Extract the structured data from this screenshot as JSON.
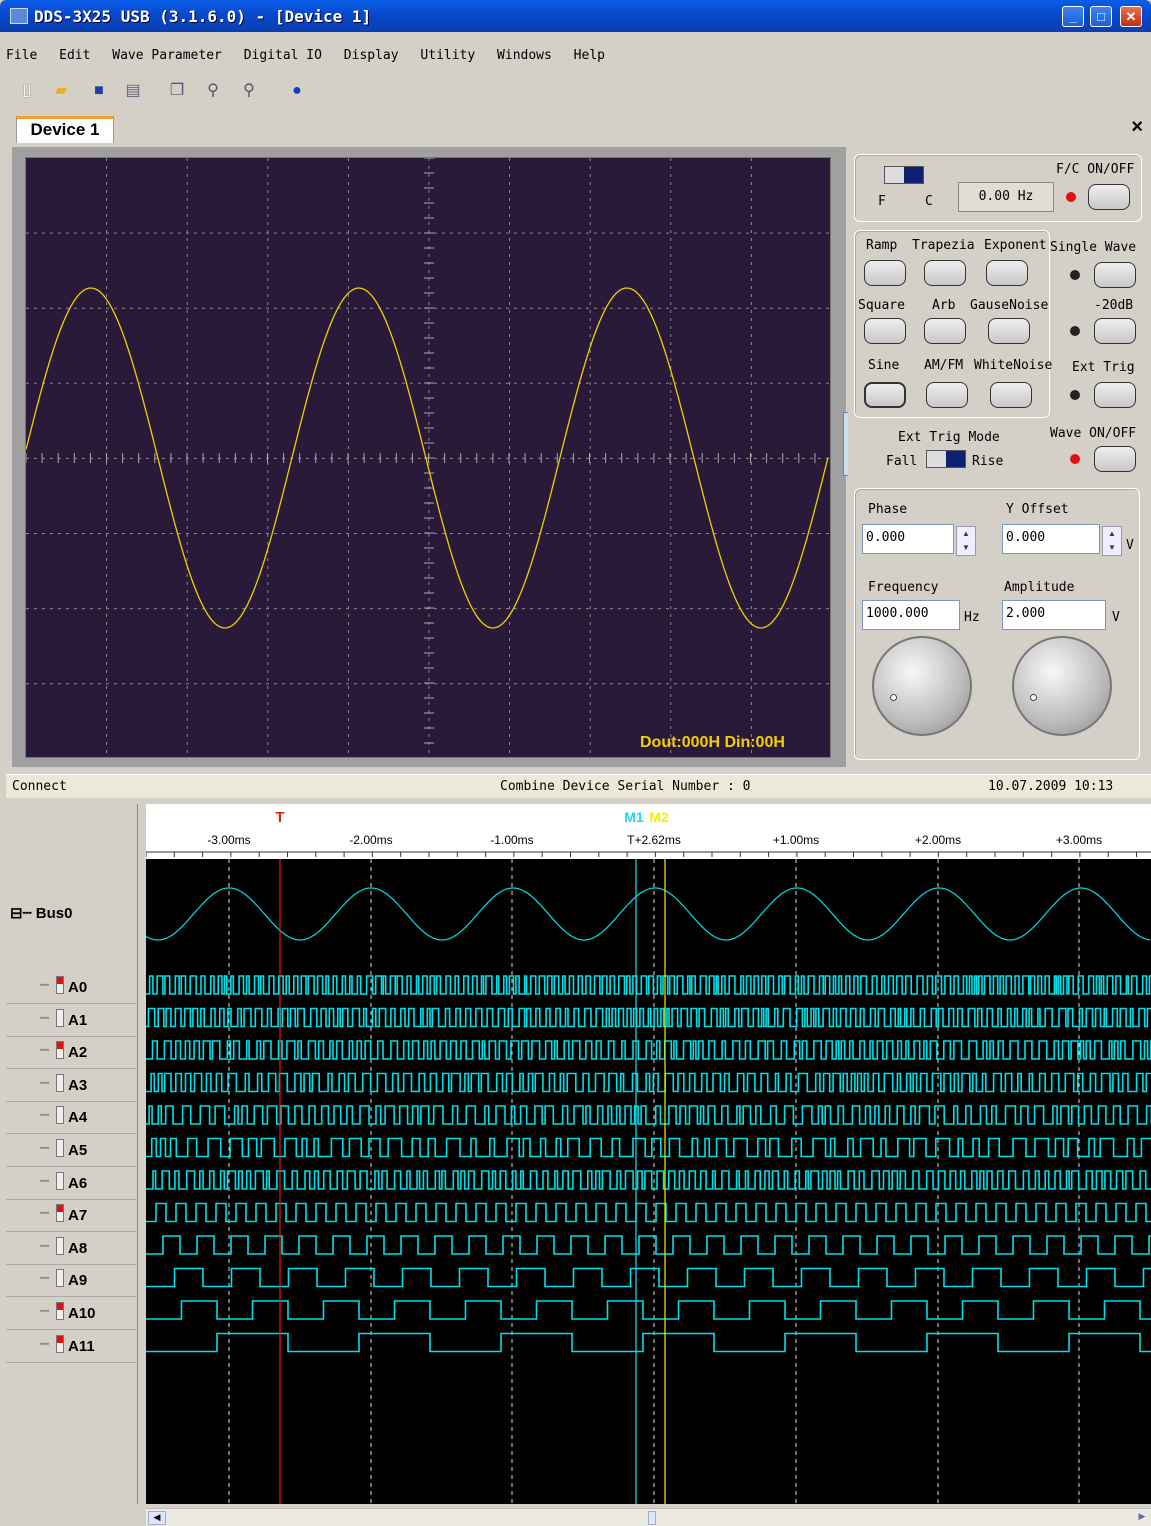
{
  "window": {
    "title": "DDS-3X25 USB (3.1.6.0) - [Device 1]"
  },
  "menu": [
    "File",
    "Edit",
    "Wave Parameter",
    "Digital IO",
    "Display",
    "Utility",
    "Windows",
    "Help"
  ],
  "toolbar_icons": [
    "new-icon",
    "open-icon",
    "save-icon",
    "print-icon",
    "copy-icon",
    "zoom-in-icon",
    "zoom-out-icon",
    "help-icon"
  ],
  "tab": {
    "label": "Device 1",
    "close": "×"
  },
  "scope": {
    "readout": "Dout:000H  Din:00H",
    "trace_color": "#f0d000"
  },
  "panel": {
    "fc_toggle_f": "F",
    "fc_toggle_c": "C",
    "freq_counter": "0.00 Hz",
    "fc_onoff": "F/C ON/OFF",
    "waves": [
      "Ramp",
      "Trapezia",
      "Exponent",
      "Square",
      "Arb",
      "GauseNoise",
      "Sine",
      "AM/FM",
      "WhiteNoise"
    ],
    "single_wave": "Single Wave",
    "minus20db": "-20dB",
    "ext_trig": "Ext Trig",
    "ext_trig_mode": "Ext Trig Mode",
    "fall": "Fall",
    "rise": "Rise",
    "wave_onoff": "Wave ON/OFF",
    "phase_label": "Phase",
    "phase_value": "0.000",
    "yoffset_label": "Y Offset",
    "yoffset_value": "0.000",
    "yoffset_unit": "V",
    "frequency_label": "Frequency",
    "frequency_value": "1000.000",
    "frequency_unit": "Hz",
    "amplitude_label": "Amplitude",
    "amplitude_value": "2.000",
    "amplitude_unit": "V"
  },
  "status": {
    "left": "Connect",
    "center": "Combine Device Serial Number : 0",
    "right": "10.07.2009  10:13"
  },
  "logic": {
    "ruler_ticks": [
      "-3.00ms",
      "-2.00ms",
      "-1.00ms",
      "T+2.62ms",
      "+1.00ms",
      "+2.00ms",
      "+3.00ms"
    ],
    "markers": {
      "T": "T",
      "M1": "M1",
      "M2": "M2"
    },
    "bus": "Bus0",
    "channels": [
      "A0",
      "A1",
      "A2",
      "A3",
      "A4",
      "A5",
      "A6",
      "A7",
      "A8",
      "A9",
      "A10",
      "A11"
    ],
    "channel_flags": [
      true,
      false,
      true,
      false,
      false,
      false,
      false,
      true,
      false,
      false,
      true,
      true
    ],
    "trace_color": "#00e0e8"
  }
}
